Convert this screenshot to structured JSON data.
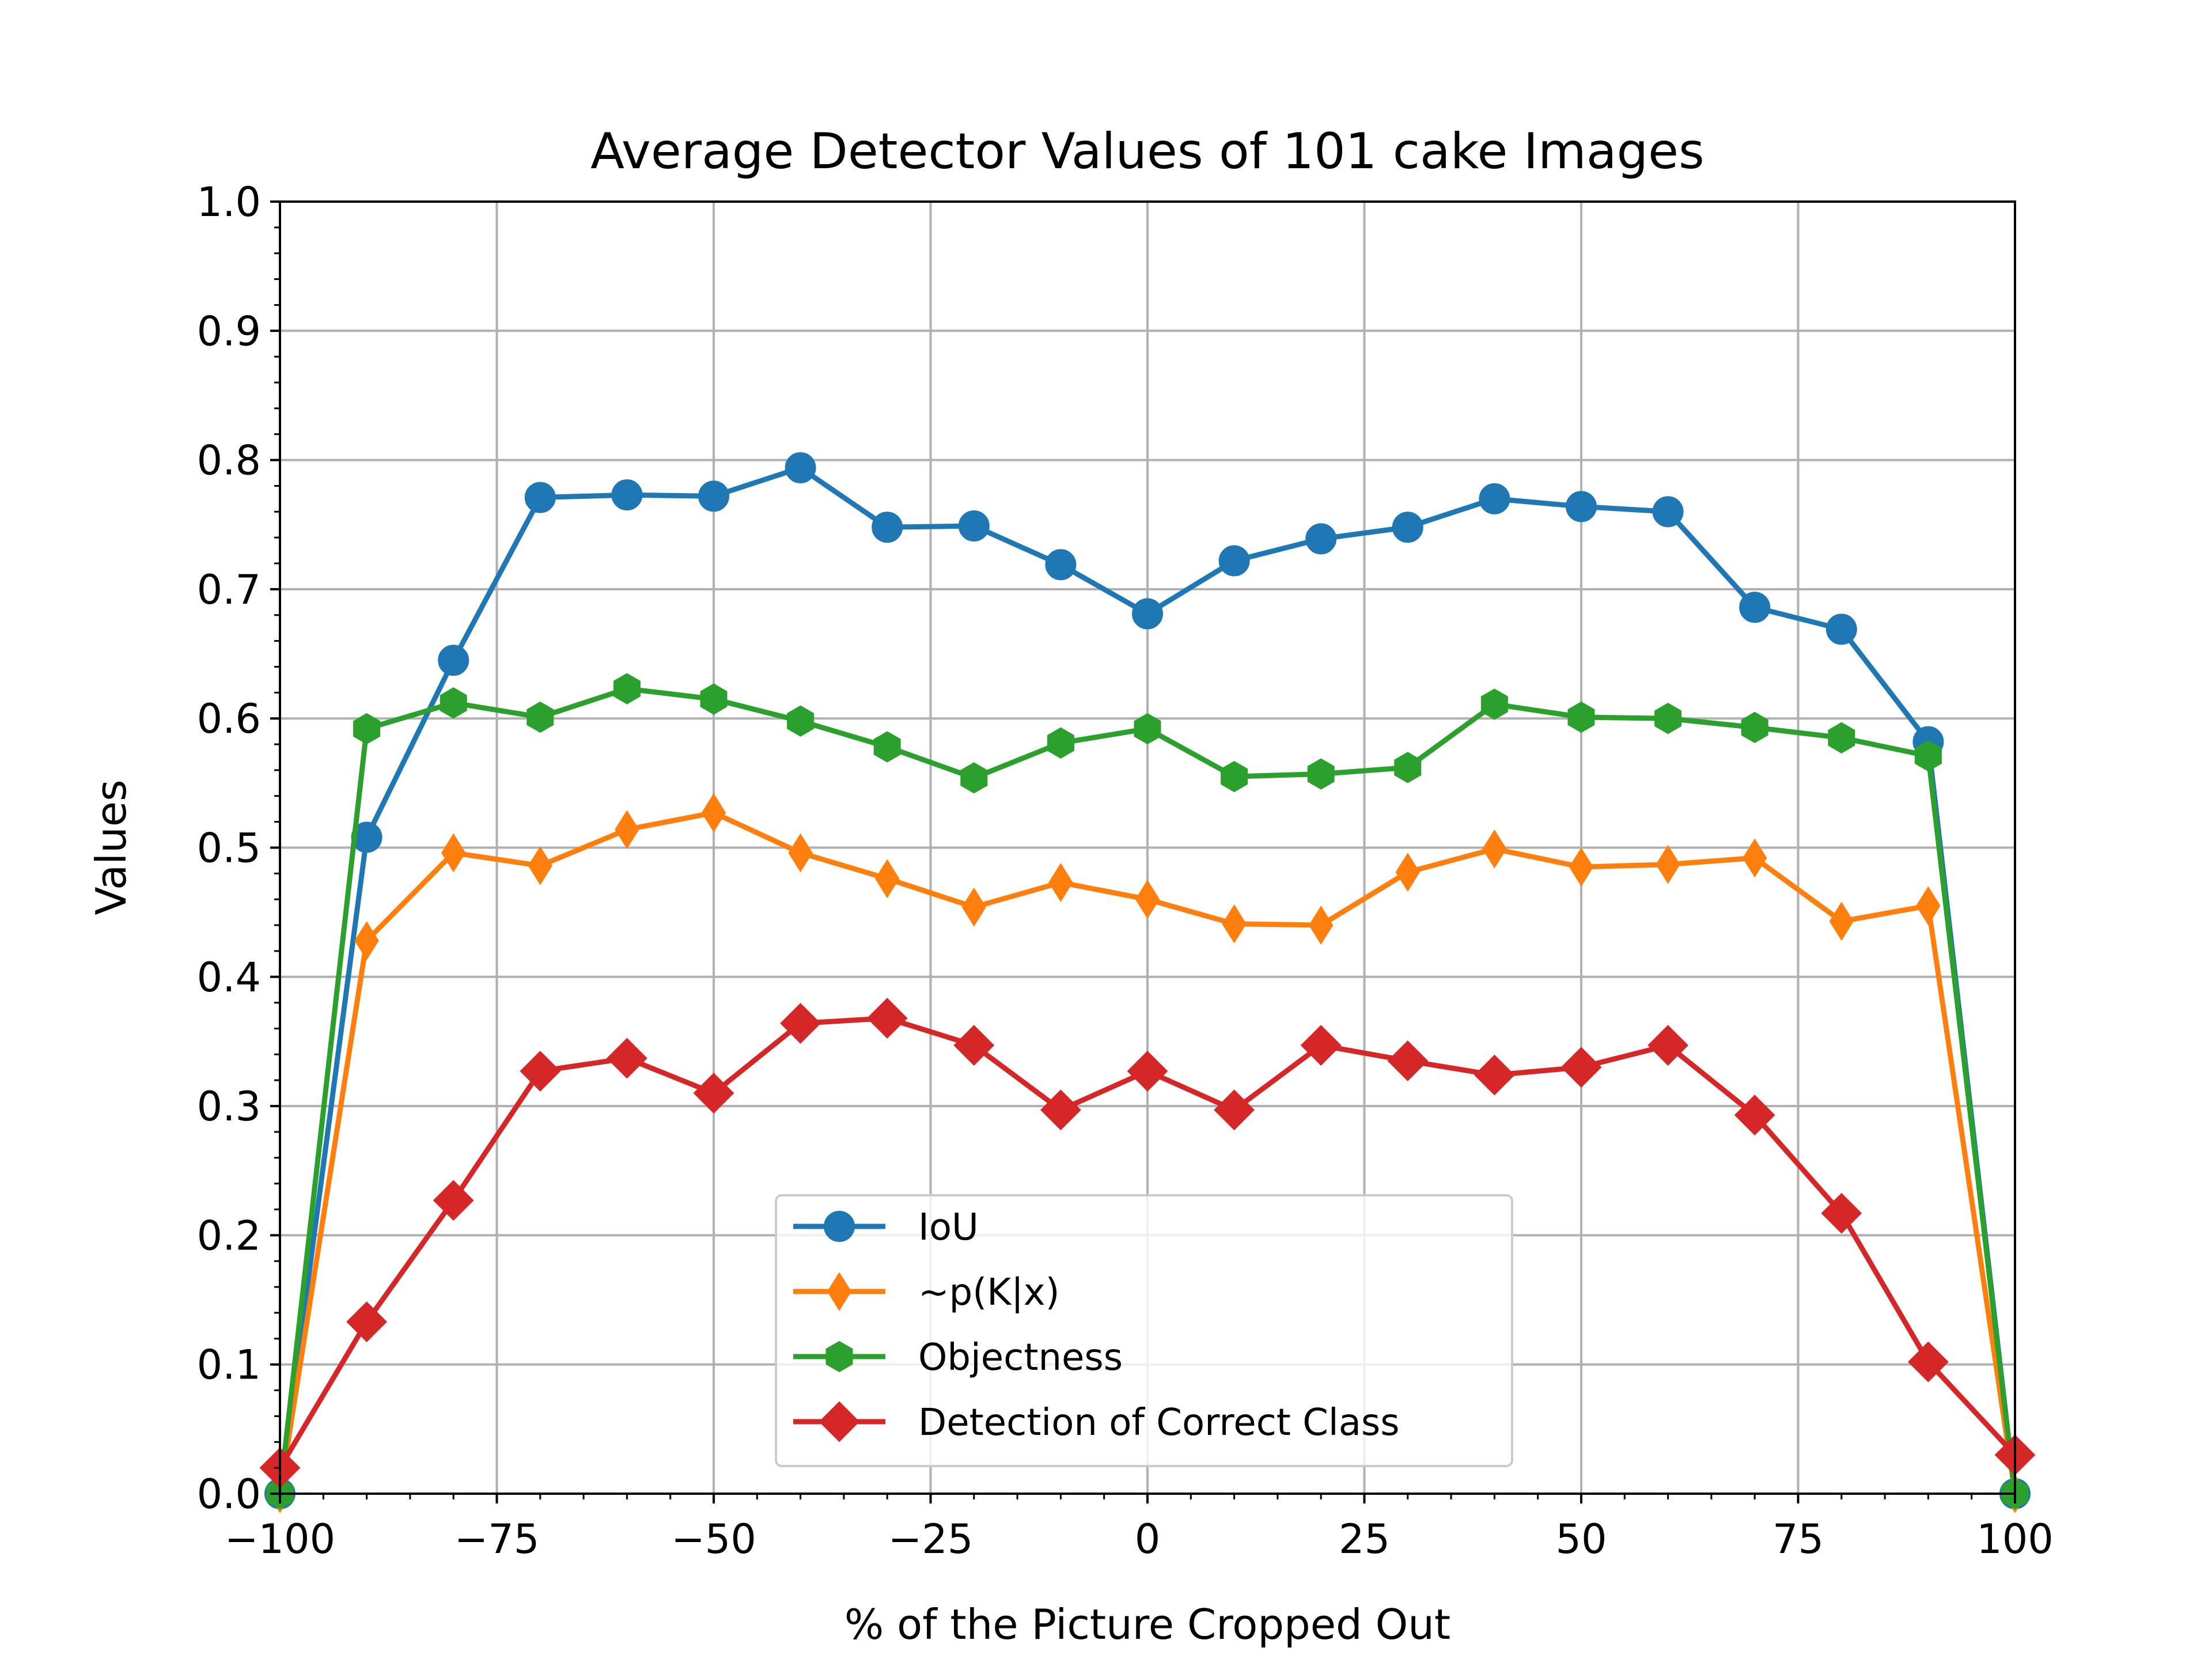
{
  "chart_data": {
    "type": "line",
    "title": "Average Detector Values of 101 cake Images",
    "xlabel": "% of the Picture Cropped Out",
    "ylabel": "Values",
    "xlim": [
      -100,
      100
    ],
    "ylim": [
      0.0,
      1.0
    ],
    "x_ticks": [
      -100,
      -75,
      -50,
      -25,
      0,
      25,
      50,
      75,
      100
    ],
    "x_tick_labels": [
      "−100",
      "−75",
      "−50",
      "−25",
      "0",
      "25",
      "50",
      "75",
      "100"
    ],
    "y_ticks": [
      0.0,
      0.1,
      0.2,
      0.3,
      0.4,
      0.5,
      0.6,
      0.7,
      0.8,
      0.9,
      1.0
    ],
    "y_tick_labels": [
      "0.0",
      "0.1",
      "0.2",
      "0.3",
      "0.4",
      "0.5",
      "0.6",
      "0.7",
      "0.8",
      "0.9",
      "1.0"
    ],
    "grid": true,
    "legend_position": "bottom-center",
    "x": [
      -100,
      -90,
      -80,
      -70,
      -60,
      -50,
      -40,
      -30,
      -20,
      -10,
      0,
      10,
      20,
      30,
      40,
      50,
      60,
      70,
      80,
      90,
      100
    ],
    "series": [
      {
        "name": "IoU",
        "color": "#1f77b4",
        "marker": "circle",
        "values": [
          0.0,
          0.508,
          0.645,
          0.771,
          0.773,
          0.772,
          0.794,
          0.748,
          0.749,
          0.719,
          0.681,
          0.722,
          0.739,
          0.748,
          0.77,
          0.764,
          0.76,
          0.686,
          0.669,
          0.582,
          0.0
        ]
      },
      {
        "name": "~p(K|x)",
        "color": "#ff7f0e",
        "marker": "thin_diamond",
        "values": [
          0.0,
          0.428,
          0.496,
          0.486,
          0.514,
          0.527,
          0.496,
          0.476,
          0.454,
          0.473,
          0.46,
          0.441,
          0.44,
          0.481,
          0.499,
          0.485,
          0.487,
          0.492,
          0.443,
          0.455,
          0.0
        ]
      },
      {
        "name": "Objectness",
        "color": "#2ca02c",
        "marker": "hexagon",
        "values": [
          0.0,
          0.592,
          0.612,
          0.601,
          0.623,
          0.615,
          0.598,
          0.578,
          0.554,
          0.581,
          0.592,
          0.555,
          0.557,
          0.562,
          0.611,
          0.601,
          0.6,
          0.593,
          0.585,
          0.571,
          0.0
        ]
      },
      {
        "name": "Detection of Correct Class",
        "color": "#d62728",
        "marker": "diamond",
        "values": [
          0.02,
          0.133,
          0.227,
          0.327,
          0.337,
          0.31,
          0.364,
          0.368,
          0.347,
          0.297,
          0.327,
          0.297,
          0.347,
          0.335,
          0.324,
          0.33,
          0.347,
          0.293,
          0.217,
          0.102,
          0.03
        ]
      }
    ]
  }
}
